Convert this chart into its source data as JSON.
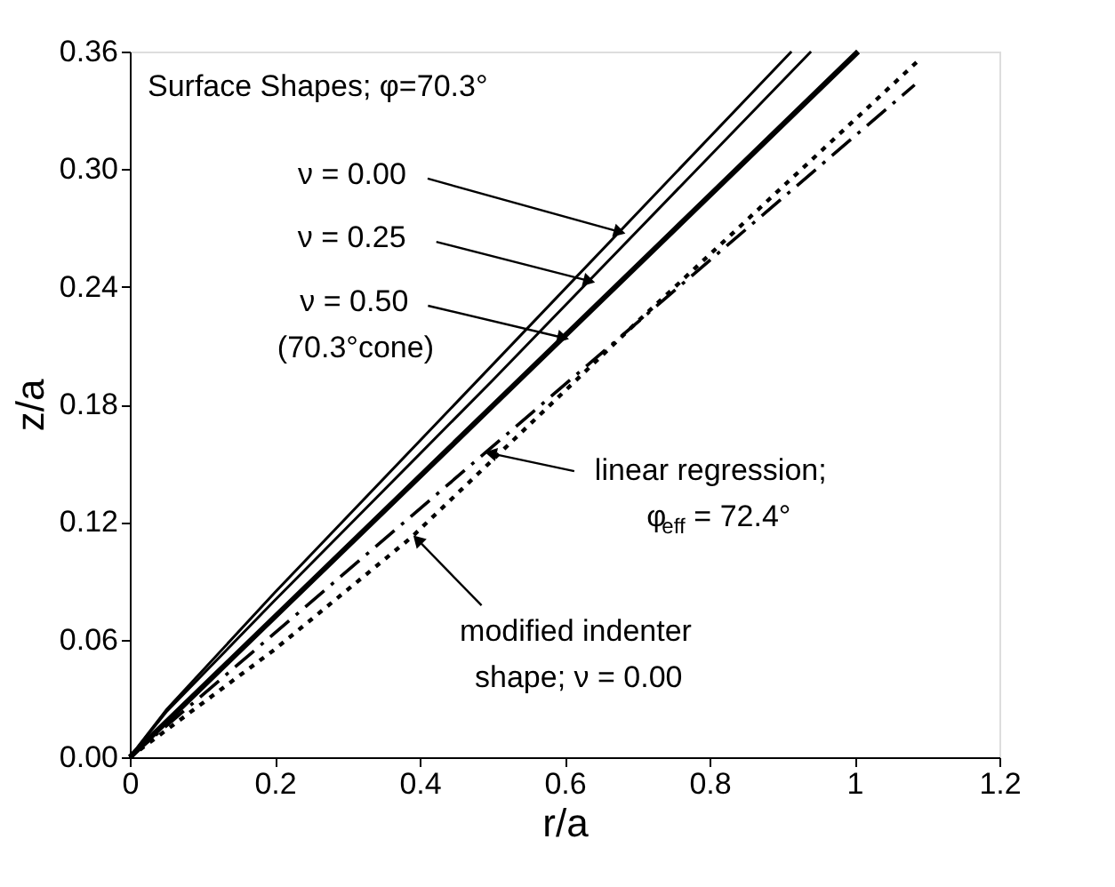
{
  "chart_data": {
    "type": "line",
    "xlabel": "r/a",
    "ylabel": "z/a",
    "xlim": [
      0,
      1.2
    ],
    "xticks": [
      0,
      0.2,
      0.4,
      0.6,
      0.8,
      1,
      1.2
    ],
    "ylim": [
      0,
      0.36
    ],
    "yticks": [
      {
        "value": 0,
        "label": "0.00"
      },
      {
        "value": 0.06,
        "label": "0.06"
      },
      {
        "value": 0.12,
        "label": "0.12"
      },
      {
        "value": 0.18,
        "label": "0.18"
      },
      {
        "value": 0.24,
        "label": "0.24"
      },
      {
        "value": 0.3,
        "label": "0.30"
      },
      {
        "value": 0.36,
        "label": "0.36"
      }
    ],
    "grid": false,
    "marker": "none",
    "series": [
      {
        "color": "#000000",
        "line_style": "solid",
        "x": [
          0,
          0.05,
          0.2,
          0.5,
          0.913
        ],
        "values": [
          0,
          0.024,
          0.084,
          0.2,
          0.36
        ]
      },
      {
        "color": "#000000",
        "line_style": "solid",
        "x": [
          0,
          0.05,
          0.2,
          0.5,
          0.94
        ],
        "values": [
          0,
          0.023,
          0.08,
          0.192,
          0.36
        ]
      },
      {
        "color": "#000000",
        "line_style": "solid",
        "x": [
          0,
          0.5,
          1.005
        ],
        "values": [
          0,
          0.179,
          0.36
        ]
      },
      {
        "color": "#000000",
        "line_style": "dashed",
        "x": [
          0,
          1.083
        ],
        "values": [
          0,
          0.343
        ]
      },
      {
        "color": "#000000",
        "line_style": "dotted",
        "x": [
          0,
          0.2,
          0.388,
          0.7,
          1.09
        ],
        "values": [
          0,
          0.055,
          0.112,
          0.222,
          0.356
        ]
      }
    ],
    "annotations": [
      "Surface Shapes; φ=70.3°",
      {
        "text": "ν = 0.00",
        "x": 0.676,
        "y": 0.268
      },
      {
        "text": "ν = 0.25",
        "x": 0.634,
        "y": 0.243
      },
      {
        "text": "ν = 0.50\n(70.3°cone)",
        "x": 0.598,
        "y": 0.214
      },
      {
        "text": "linear regression;\nφ$_{eff}$ = 72.4°",
        "x": 0.498,
        "y": 0.155
      },
      {
        "text": "modified indenter\nshape; ν = 0.00",
        "x": 0.397,
        "y": 0.111
      }
    ]
  }
}
